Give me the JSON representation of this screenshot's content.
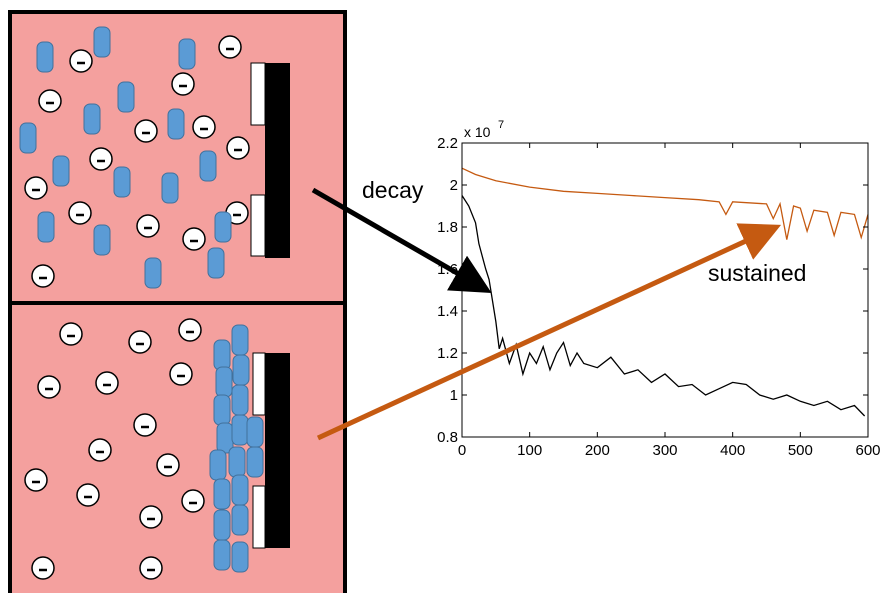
{
  "chart_data": {
    "type": "line",
    "exponent_base": "x 10",
    "exponent_power": "7",
    "annotations": [
      "decay",
      "sustained"
    ],
    "xlim": [
      0,
      600
    ],
    "ylim": [
      0.8,
      2.2
    ],
    "xticks": [
      0,
      100,
      200,
      300,
      400,
      500,
      600
    ],
    "yticks": [
      0.8,
      1,
      1.2,
      1.4,
      1.6,
      1.8,
      2,
      2.2
    ],
    "series": [
      {
        "color": "#000000",
        "x": [
          0,
          10,
          20,
          25,
          30,
          35,
          40,
          45,
          50,
          55,
          60,
          70,
          80,
          90,
          100,
          110,
          120,
          130,
          140,
          150,
          160,
          170,
          180,
          200,
          220,
          240,
          260,
          280,
          300,
          320,
          340,
          360,
          380,
          400,
          420,
          440,
          460,
          480,
          500,
          520,
          540,
          560,
          580,
          595
        ],
        "values": [
          1.95,
          1.9,
          1.82,
          1.72,
          1.66,
          1.6,
          1.55,
          1.45,
          1.35,
          1.22,
          1.27,
          1.15,
          1.24,
          1.1,
          1.2,
          1.15,
          1.23,
          1.12,
          1.2,
          1.25,
          1.14,
          1.2,
          1.15,
          1.13,
          1.18,
          1.1,
          1.12,
          1.06,
          1.1,
          1.04,
          1.05,
          1.0,
          1.03,
          1.06,
          1.05,
          1.0,
          0.98,
          1.0,
          0.97,
          0.95,
          0.97,
          0.93,
          0.95,
          0.9
        ]
      },
      {
        "color": "#c55a11",
        "x": [
          0,
          20,
          50,
          100,
          150,
          200,
          250,
          300,
          350,
          380,
          390,
          400,
          450,
          460,
          470,
          480,
          490,
          500,
          510,
          520,
          540,
          550,
          560,
          580,
          590,
          600
        ],
        "values": [
          2.08,
          2.05,
          2.02,
          1.99,
          1.97,
          1.96,
          1.95,
          1.94,
          1.93,
          1.92,
          1.86,
          1.92,
          1.91,
          1.84,
          1.91,
          1.74,
          1.9,
          1.89,
          1.78,
          1.88,
          1.87,
          1.76,
          1.87,
          1.86,
          1.75,
          1.86
        ]
      }
    ]
  }
}
